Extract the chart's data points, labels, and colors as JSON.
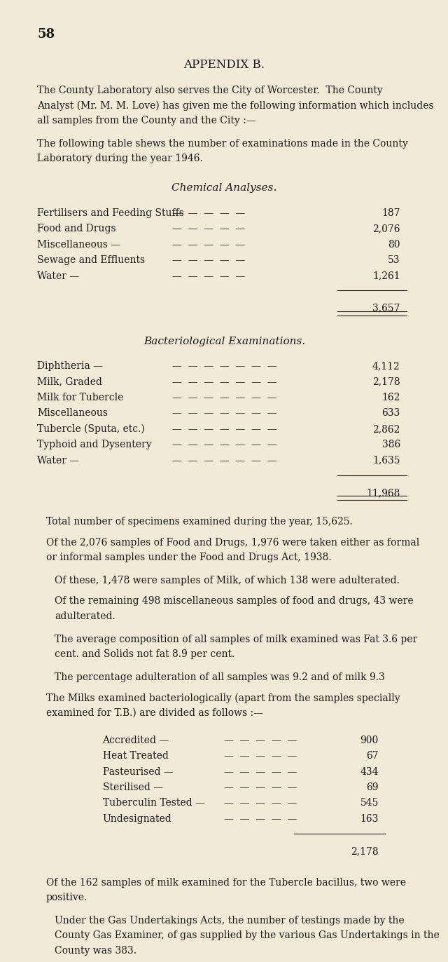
{
  "bg_color": "#f0ead6",
  "text_color": "#1a1a1a",
  "page_number": "58",
  "title": "APPENDIX B.",
  "intro_lines": [
    "The County Laboratory also serves the City of Worcester.  The County",
    "Analyst (Mr. M. M. Love) has given me the following information which includes",
    "all samples from the County and the City :—"
  ],
  "table_intro_lines": [
    "The following table shews the number of examinations made in the County",
    "Laboratory during the year 1946."
  ],
  "chemical_header": "Chemical Analyses.",
  "chemical_items": [
    [
      "Fertilisers and Feeding Stuffs",
      "187"
    ],
    [
      "Food and Drugs",
      "2,076"
    ],
    [
      "Miscellaneous —",
      "80"
    ],
    [
      "Sewage and Effluents",
      "53"
    ],
    [
      "Water —",
      "1,261"
    ]
  ],
  "chemical_total": "3,657",
  "bacterio_header": "Bacteriological Examinations.",
  "bacterio_items": [
    [
      "Diphtheria —",
      "4,112"
    ],
    [
      "Milk, Graded",
      "2,178"
    ],
    [
      "Milk for Tubercle",
      "162"
    ],
    [
      "Miscellaneous",
      "633"
    ],
    [
      "Tubercle (Sputa, etc.)",
      "2,862"
    ],
    [
      "Typhoid and Dysentery",
      "386"
    ],
    [
      "Water —",
      "1,635"
    ]
  ],
  "bacterio_total": "11,968",
  "para1": "Total number of specimens examined during the year, 15,625.",
  "para2_lines": [
    "Of the 2,076 samples of Food and Drugs, 1,976 were taken either as formal",
    "or informal samples under the Food and Drugs Act, 1938."
  ],
  "para3": "Of these, 1,478 were samples of Milk, of which 138 were adulterated.",
  "para4_lines": [
    "Of the remaining 498 miscellaneous samples of food and drugs, 43 were",
    "adulterated."
  ],
  "para5_lines": [
    "The average composition of all samples of milk examined was Fat 3.6 per",
    "cent. and Solids not fat 8.9 per cent."
  ],
  "para6": "The percentage adulteration of all samples was 9.2 and of milk 9.3",
  "para7_lines": [
    "The Milks examined bacteriologically (apart from the samples specially",
    "examined for T.B.) are divided as follows :—"
  ],
  "milk_items": [
    [
      "Accredited —",
      "900"
    ],
    [
      "Heat Treated",
      "67"
    ],
    [
      "Pasteurised —",
      "434"
    ],
    [
      "Sterilised —",
      "69"
    ],
    [
      "Tuberculin Tested —",
      "545"
    ],
    [
      "Undesignated",
      "163"
    ]
  ],
  "milk_total": "2,178",
  "para8_lines": [
    "Of the 162 samples of milk examined for the Tubercle bacillus, two were",
    "positive."
  ],
  "para9_lines": [
    "Under the Gas Undertakings Acts, the number of testings made by the",
    "County Gas Examiner, of gas supplied by the various Gas Undertakings in the",
    "County was 383."
  ]
}
